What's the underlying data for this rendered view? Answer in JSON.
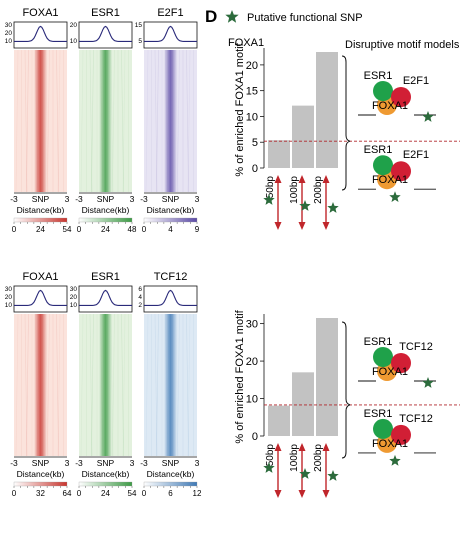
{
  "panel_label": "D",
  "legend_text": "Putative functional SNP",
  "disruptive_title": "Disruptive motif models",
  "colors": {
    "foxa1": "#c8352e",
    "esr1": "#3d9a45",
    "e2f1": "#5c4ba6",
    "tcf12": "#3f79b5",
    "bar": "#c2c2c2",
    "arrow": "#c0262b",
    "snp_star": "#2c6b3c",
    "threshold": "#b0262b",
    "green_circle": "#1fa14a",
    "red_circle": "#d11f35",
    "orange_circle": "#ef9a32"
  },
  "heatmap_groups": [
    {
      "tracks": [
        {
          "name": "FOXA1",
          "color": "foxa1",
          "ymax": "30",
          "ymid": "20",
          "ylow": "10",
          "scale": [
            "0",
            "24",
            "54"
          ]
        },
        {
          "name": "ESR1",
          "color": "esr1",
          "ymax": "20",
          "ymid": "",
          "ylow": "10",
          "scale": [
            "0",
            "24",
            "48"
          ]
        },
        {
          "name": "E2F1",
          "color": "e2f1",
          "ymax": "15",
          "ymid": "",
          "ylow": "5",
          "scale": [
            "0",
            "4",
            "9"
          ]
        }
      ],
      "axis_left": "-3",
      "axis_mid": "SNP",
      "axis_right": "3",
      "axis_label": "Distance(kb)"
    },
    {
      "tracks": [
        {
          "name": "FOXA1",
          "color": "foxa1",
          "ymax": "30",
          "ymid": "20",
          "ylow": "10",
          "scale": [
            "0",
            "32",
            "64"
          ]
        },
        {
          "name": "ESR1",
          "color": "esr1",
          "ymax": "30",
          "ymid": "20",
          "ylow": "10",
          "scale": [
            "0",
            "24",
            "54"
          ]
        },
        {
          "name": "TCF12",
          "color": "tcf12",
          "ymax": "6",
          "ymid": "4",
          "ylow": "2",
          "scale": [
            "0",
            "6",
            "12"
          ]
        }
      ],
      "axis_left": "-3",
      "axis_mid": "SNP",
      "axis_right": "3",
      "axis_label": "Distance(kb)"
    }
  ],
  "chart_data": [
    {
      "type": "bar",
      "title": "FOXA1",
      "ylabel": "% of enriched FOXA1 motif",
      "categories": [
        "50bp",
        "100bp",
        "200bp"
      ],
      "values": [
        5.4,
        12.1,
        22.5
      ],
      "threshold": 5.2,
      "ylim": [
        0,
        22.5
      ],
      "yticks": [
        "0",
        "5",
        "10",
        "15",
        "20"
      ],
      "motif_models": [
        {
          "labels": [
            "ESR1",
            "E2F1",
            "FOXA1"
          ]
        },
        {
          "labels": [
            "ESR1",
            "E2F1",
            "FOXA1"
          ]
        }
      ]
    },
    {
      "type": "bar",
      "title": "",
      "ylabel": "% of enriched FOXA1 motif",
      "categories": [
        "50bp",
        "100bp",
        "200bp"
      ],
      "values": [
        8.1,
        17.0,
        31.5
      ],
      "threshold": 8.3,
      "ylim": [
        0,
        31.5
      ],
      "yticks": [
        "0",
        "10",
        "20",
        "30"
      ],
      "motif_models": [
        {
          "labels": [
            "ESR1",
            "TCF12",
            "FOXA1"
          ]
        },
        {
          "labels": [
            "ESR1",
            "TCF12",
            "FOXA1"
          ]
        }
      ]
    }
  ]
}
